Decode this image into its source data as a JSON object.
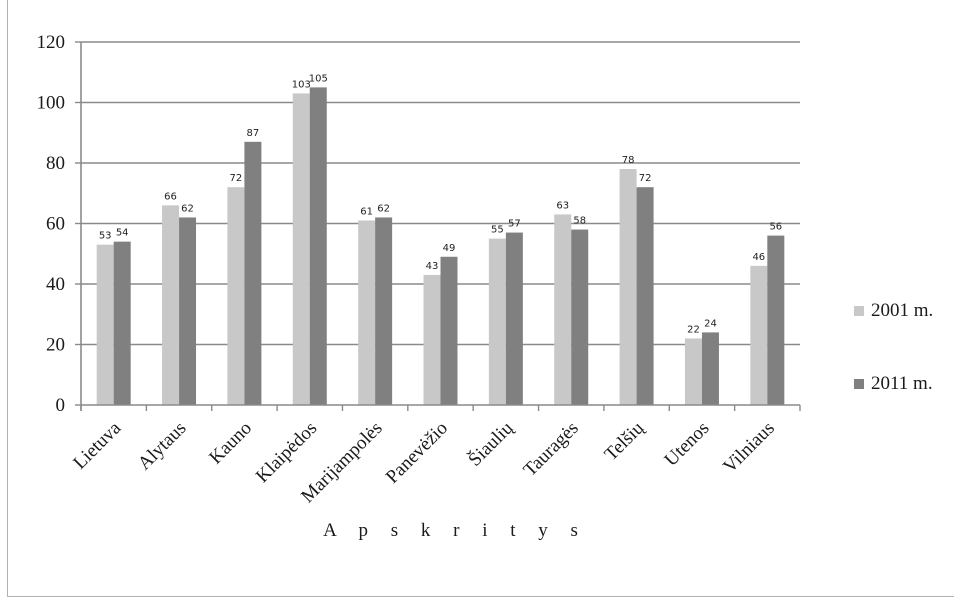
{
  "chart_data": {
    "type": "bar",
    "categories": [
      "Lietuva",
      "Alytaus",
      "Kauno",
      "Klaipėdos",
      "Marijampolės",
      "Panevėžio",
      "Šiaulių",
      "Tauragės",
      "Telšių",
      "Utenos",
      "Vilniaus"
    ],
    "series": [
      {
        "name": "2001 m.",
        "values": [
          53,
          66,
          72,
          103,
          61,
          43,
          55,
          63,
          78,
          22,
          46
        ],
        "color": "#c8c8c8"
      },
      {
        "name": "2011 m.",
        "values": [
          54,
          62,
          87,
          105,
          62,
          49,
          57,
          58,
          72,
          24,
          56
        ],
        "color": "#808080"
      }
    ],
    "title": "",
    "xlabel": "A p s k r i t y s",
    "ylabel": "",
    "ylim": [
      0,
      120
    ],
    "yticks": [
      0,
      20,
      40,
      60,
      80,
      100,
      120
    ],
    "grid": true,
    "legend_position": "right"
  }
}
